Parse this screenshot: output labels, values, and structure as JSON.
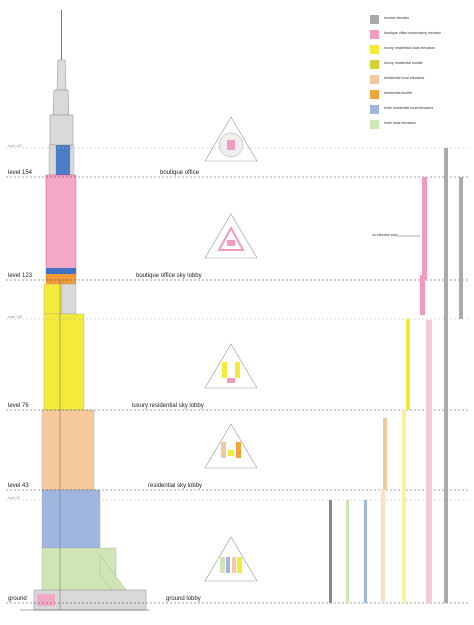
{
  "legend": [
    {
      "label": "service elevator",
      "color": "#a8a8a8"
    },
    {
      "label": "boutique office observatory elevator",
      "color": "#f29ac0"
    },
    {
      "label": "luxury residential local elevators",
      "color": "#f4ea3a"
    },
    {
      "label": "luxury residential shuttle",
      "color": "#d6d236"
    },
    {
      "label": "residential local elevators",
      "color": "#f4c9a0"
    },
    {
      "label": "residential shuttle",
      "color": "#f2a43a"
    },
    {
      "label": "hotel residential local elevators",
      "color": "#9fb6e0"
    },
    {
      "label": "hotel local elevators",
      "color": "#cfe6b4"
    }
  ],
  "levels": {
    "major": [
      {
        "label": "level 154"
      },
      {
        "label": "level 123"
      },
      {
        "label": "level 76"
      },
      {
        "label": "level 43"
      },
      {
        "label": "ground"
      }
    ],
    "minor": [
      {
        "label": "level 160"
      },
      {
        "label": "level 108"
      },
      {
        "label": "level 39"
      }
    ]
  },
  "plans": [
    {
      "label": "boutique office"
    },
    {
      "label": "boutique office sky lobby"
    },
    {
      "label": "luxury residential sky lobby"
    },
    {
      "label": "residential sky lobby"
    },
    {
      "label": "ground lobby"
    }
  ],
  "note": "no elevator stop"
}
